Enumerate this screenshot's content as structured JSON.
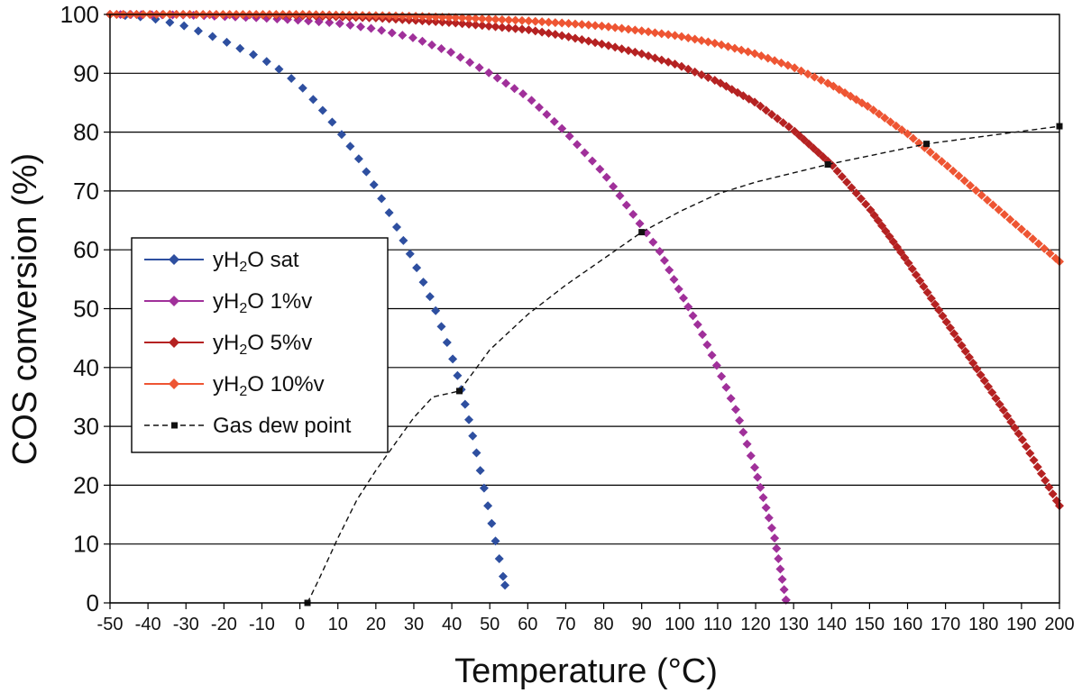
{
  "chart_data": {
    "type": "scatter",
    "title": "",
    "xlabel": "Temperature (°C)",
    "ylabel": "COS conversion (%)",
    "xlim": [
      -50,
      200
    ],
    "ylim": [
      0,
      100
    ],
    "x_ticks": [
      -50,
      -40,
      -30,
      -20,
      -10,
      0,
      10,
      20,
      30,
      40,
      50,
      60,
      70,
      80,
      90,
      100,
      110,
      120,
      130,
      140,
      150,
      160,
      170,
      180,
      190,
      200
    ],
    "y_ticks": [
      0,
      10,
      20,
      30,
      40,
      50,
      60,
      70,
      80,
      90,
      100
    ],
    "grid": "horizontal",
    "legend_position": "center-left",
    "series": [
      {
        "name": "yH2O sat",
        "legend_parts": [
          "yH",
          "2",
          "O sat"
        ],
        "color": "#2e4fa0",
        "marker": "diamond",
        "x": [
          -50,
          -40,
          -30,
          -20,
          -10,
          -5,
          0,
          5,
          10,
          15,
          20,
          25,
          30,
          35,
          40,
          42,
          44,
          46,
          48,
          50,
          52,
          54
        ],
        "y": [
          100,
          99.5,
          98,
          95.5,
          92.5,
          90.5,
          88,
          84.5,
          80.5,
          76,
          70.5,
          64.5,
          58,
          51,
          42,
          37.5,
          32.5,
          27,
          21,
          15,
          9,
          3
        ]
      },
      {
        "name": "yH2O 1%v",
        "legend_parts": [
          "yH",
          "2",
          "O 1%v"
        ],
        "color": "#a0309a",
        "marker": "diamond",
        "x": [
          -50,
          -30,
          -10,
          0,
          10,
          20,
          30,
          40,
          50,
          60,
          70,
          80,
          90,
          95,
          100,
          105,
          110,
          115,
          120,
          125,
          128
        ],
        "y": [
          100,
          99.9,
          99.4,
          99,
          98.5,
          97.5,
          96,
          93.5,
          90,
          86,
          80,
          73,
          64,
          59.5,
          53,
          47,
          40,
          32.5,
          22.5,
          11,
          0.5
        ]
      },
      {
        "name": "yH2O 5%v",
        "legend_parts": [
          "yH",
          "2",
          "O 5%v"
        ],
        "color": "#b52222",
        "marker": "diamond",
        "x": [
          -50,
          -30,
          -10,
          0,
          10,
          20,
          30,
          40,
          50,
          60,
          70,
          80,
          90,
          100,
          110,
          120,
          130,
          140,
          150,
          160,
          170,
          180,
          190,
          200
        ],
        "y": [
          100,
          100,
          99.9,
          99.8,
          99.6,
          99.4,
          99,
          98.6,
          98,
          97.4,
          96.3,
          94.9,
          93.3,
          91.3,
          88.6,
          85,
          80.3,
          74.5,
          67,
          58,
          48,
          38,
          28,
          16.5
        ]
      },
      {
        "name": "yH2O 10%v",
        "legend_parts": [
          "yH",
          "2",
          "O 10%v"
        ],
        "color": "#ee5533",
        "marker": "diamond",
        "x": [
          -50,
          -30,
          -10,
          0,
          10,
          20,
          30,
          40,
          50,
          60,
          70,
          80,
          90,
          100,
          110,
          120,
          130,
          140,
          150,
          160,
          170,
          180,
          190,
          200
        ],
        "y": [
          100,
          100,
          100,
          100,
          99.9,
          99.8,
          99.7,
          99.5,
          99.2,
          98.9,
          98.5,
          98,
          97.2,
          96.3,
          95,
          93.3,
          91,
          88,
          84.2,
          79.7,
          74.5,
          69,
          63.5,
          58
        ]
      },
      {
        "name": "Gas dew point",
        "legend_parts": [
          "Gas dew point"
        ],
        "color": "#111111",
        "marker": "square",
        "line": "dashed",
        "x": [
          2,
          5,
          10,
          15,
          20,
          25,
          30,
          35,
          42,
          50,
          60,
          70,
          80,
          90,
          100,
          110,
          120,
          139,
          165,
          200
        ],
        "y": [
          0,
          4,
          11,
          17.5,
          22.5,
          27,
          31.5,
          35,
          36,
          43,
          49,
          54,
          58.5,
          63,
          66.5,
          69.5,
          71.5,
          74.5,
          78,
          81
        ],
        "marker_x": [
          2,
          42,
          90,
          139,
          165,
          200
        ],
        "marker_y": [
          0,
          36,
          63,
          74.5,
          78,
          81
        ]
      }
    ]
  }
}
